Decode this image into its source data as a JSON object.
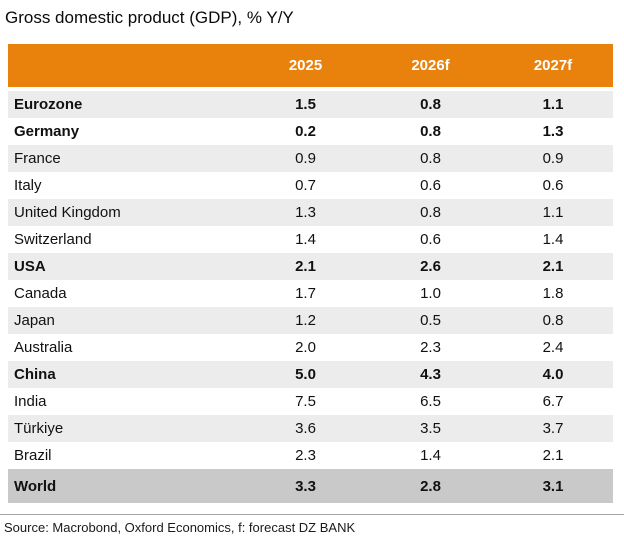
{
  "title": "Gross domestic product (GDP), % Y/Y",
  "source": "Source: Macrobond, Oxford Economics, f: forecast DZ BANK",
  "colors": {
    "header_bg": "#E8820D",
    "header_text": "#FFFFFF",
    "row_alt_bg": "#ECECEC",
    "world_row_bg": "#C9C9C9",
    "divider_line": "#A6A6A6",
    "text": "#111111"
  },
  "table": {
    "columns": [
      "2025",
      "2026f",
      "2027f"
    ],
    "rows": [
      {
        "label": "Eurozone",
        "values": [
          "1.5",
          "0.8",
          "1.1"
        ],
        "bold": true,
        "highlight": false
      },
      {
        "label": "Germany",
        "values": [
          "0.2",
          "0.8",
          "1.3"
        ],
        "bold": true,
        "highlight": false
      },
      {
        "label": "France",
        "values": [
          "0.9",
          "0.8",
          "0.9"
        ],
        "bold": false,
        "highlight": false
      },
      {
        "label": "Italy",
        "values": [
          "0.7",
          "0.6",
          "0.6"
        ],
        "bold": false,
        "highlight": false
      },
      {
        "label": "United Kingdom",
        "values": [
          "1.3",
          "0.8",
          "1.1"
        ],
        "bold": false,
        "highlight": false
      },
      {
        "label": "Switzerland",
        "values": [
          "1.4",
          "0.6",
          "1.4"
        ],
        "bold": false,
        "highlight": false
      },
      {
        "label": "USA",
        "values": [
          "2.1",
          "2.6",
          "2.1"
        ],
        "bold": true,
        "highlight": false
      },
      {
        "label": "Canada",
        "values": [
          "1.7",
          "1.0",
          "1.8"
        ],
        "bold": false,
        "highlight": false
      },
      {
        "label": "Japan",
        "values": [
          "1.2",
          "0.5",
          "0.8"
        ],
        "bold": false,
        "highlight": false
      },
      {
        "label": "Australia",
        "values": [
          "2.0",
          "2.3",
          "2.4"
        ],
        "bold": false,
        "highlight": false
      },
      {
        "label": "China",
        "values": [
          "5.0",
          "4.3",
          "4.0"
        ],
        "bold": true,
        "highlight": false
      },
      {
        "label": "India",
        "values": [
          "7.5",
          "6.5",
          "6.7"
        ],
        "bold": false,
        "highlight": false
      },
      {
        "label": "Türkiye",
        "values": [
          "3.6",
          "3.5",
          "3.7"
        ],
        "bold": false,
        "highlight": false
      },
      {
        "label": "Brazil",
        "values": [
          "2.3",
          "1.4",
          "2.1"
        ],
        "bold": false,
        "highlight": false
      },
      {
        "label": "World",
        "values": [
          "3.3",
          "2.8",
          "3.1"
        ],
        "bold": true,
        "highlight": true
      }
    ]
  },
  "chart_data": {
    "type": "table",
    "title": "Gross domestic product (GDP), % Y/Y",
    "categories": [
      "Eurozone",
      "Germany",
      "France",
      "Italy",
      "United Kingdom",
      "Switzerland",
      "USA",
      "Canada",
      "Japan",
      "Australia",
      "China",
      "India",
      "Türkiye",
      "Brazil",
      "World"
    ],
    "series": [
      {
        "name": "2025",
        "values": [
          1.5,
          0.2,
          0.9,
          0.7,
          1.3,
          1.4,
          2.1,
          1.7,
          1.2,
          2.0,
          5.0,
          7.5,
          3.6,
          2.3,
          3.3
        ]
      },
      {
        "name": "2026f",
        "values": [
          0.8,
          0.8,
          0.8,
          0.6,
          0.8,
          0.6,
          2.6,
          1.0,
          0.5,
          2.3,
          4.3,
          6.5,
          3.5,
          1.4,
          2.8
        ]
      },
      {
        "name": "2027f",
        "values": [
          1.1,
          1.3,
          0.9,
          0.6,
          1.1,
          1.4,
          2.1,
          1.8,
          0.8,
          2.4,
          4.0,
          6.7,
          3.7,
          2.1,
          3.1
        ]
      }
    ],
    "annotations": [
      "f: forecast"
    ],
    "footnote": "Source: Macrobond, Oxford Economics, f: forecast DZ BANK"
  }
}
